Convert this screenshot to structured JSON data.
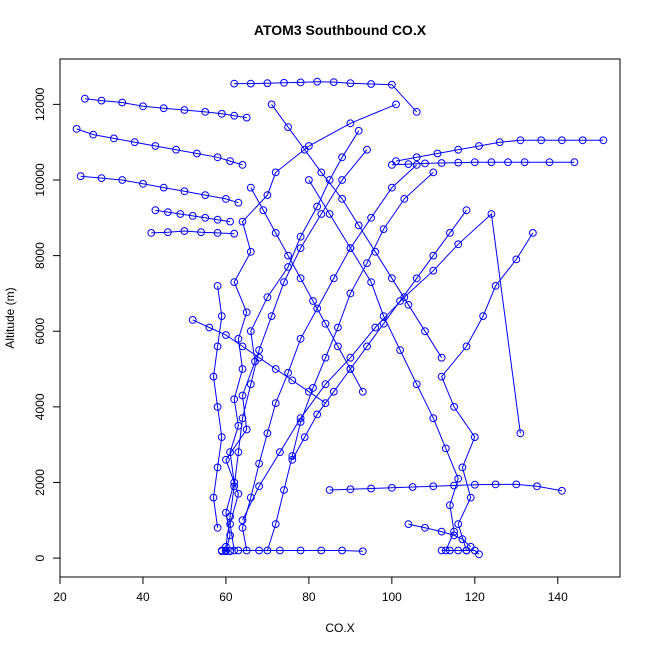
{
  "chart_data": {
    "type": "line",
    "title": "ATOM3 Southbound CO.X",
    "xlabel": "CO.X",
    "ylabel": "Altitude (m)",
    "xlim": [
      20,
      155
    ],
    "ylim": [
      -500,
      13200
    ],
    "xticks": [
      20,
      40,
      60,
      80,
      100,
      120,
      140
    ],
    "yticks": [
      0,
      2000,
      4000,
      6000,
      8000,
      10000,
      12000
    ],
    "xtick_labels": [
      "20",
      "40",
      "60",
      "80",
      "100",
      "120",
      "140"
    ],
    "ytick_labels": [
      "0",
      "2000",
      "4000",
      "6000",
      "8000",
      "10000",
      "12000"
    ],
    "grid": false,
    "legend": "none",
    "marker": "open-circle",
    "line_color": "#0000ff",
    "point_color": "#0000ff",
    "series": [
      {
        "values_note_xy": "approximate profiles",
        "x": [
          60,
          61,
          60,
          62,
          61,
          63,
          62,
          64,
          63,
          65,
          62,
          66,
          64,
          70,
          72,
          80,
          90,
          101
        ],
        "y": [
          200,
          600,
          1200,
          2000,
          2800,
          3500,
          4200,
          5000,
          5800,
          6500,
          7300,
          8100,
          8900,
          9600,
          10200,
          10900,
          11500,
          12000
        ]
      },
      {
        "x": [
          62,
          61,
          63,
          60,
          65,
          64,
          67,
          66,
          70,
          75,
          78,
          82,
          85,
          88,
          92
        ],
        "y": [
          200,
          900,
          1700,
          2600,
          3400,
          4300,
          5200,
          6000,
          6900,
          7700,
          8500,
          9300,
          10000,
          10600,
          11300
        ]
      },
      {
        "x": [
          65,
          64,
          66,
          68,
          70,
          72,
          75,
          78,
          82,
          86,
          90,
          95,
          100,
          106
        ],
        "y": [
          200,
          800,
          1600,
          2500,
          3300,
          4100,
          4900,
          5800,
          6600,
          7400,
          8200,
          9000,
          9800,
          10400
        ]
      },
      {
        "x": [
          70,
          72,
          74,
          76,
          78,
          81,
          84,
          87,
          90,
          94,
          98,
          103,
          110
        ],
        "y": [
          200,
          900,
          1800,
          2700,
          3600,
          4500,
          5300,
          6100,
          7000,
          7800,
          8700,
          9500,
          10200
        ]
      },
      {
        "x": [
          113,
          115,
          114,
          116,
          113,
          110,
          106,
          102,
          98,
          95,
          90,
          85,
          80
        ],
        "y": [
          200,
          700,
          1400,
          2100,
          2900,
          3700,
          4600,
          5500,
          6400,
          7300,
          8200,
          9100,
          10000
        ]
      },
      {
        "x": [
          118,
          116,
          119,
          117,
          120,
          115,
          112,
          118,
          122,
          125,
          130,
          134
        ],
        "y": [
          200,
          900,
          1600,
          2400,
          3200,
          4000,
          4800,
          5600,
          6400,
          7200,
          7900,
          8600
        ]
      },
      {
        "x": [
          60,
          61,
          62,
          63,
          64,
          66,
          68,
          71,
          74,
          78,
          83,
          88,
          94
        ],
        "y": [
          300,
          1100,
          1900,
          2800,
          3700,
          4600,
          5500,
          6400,
          7300,
          8200,
          9100,
          10000,
          10800
        ]
      },
      {
        "x": [
          26,
          30,
          35,
          40,
          45,
          50,
          55,
          59,
          62,
          65
        ],
        "y": [
          12150,
          12100,
          12050,
          11950,
          11900,
          11850,
          11800,
          11750,
          11700,
          11650
        ]
      },
      {
        "x": [
          24,
          28,
          33,
          38,
          43,
          48,
          53,
          58,
          61,
          64
        ],
        "y": [
          11350,
          11200,
          11100,
          11000,
          10900,
          10800,
          10700,
          10600,
          10500,
          10400
        ]
      },
      {
        "x": [
          25,
          30,
          35,
          40,
          45,
          50,
          55,
          60,
          63
        ],
        "y": [
          10100,
          10050,
          10000,
          9900,
          9800,
          9700,
          9600,
          9500,
          9400
        ]
      },
      {
        "x": [
          43,
          46,
          49,
          52,
          55,
          58,
          61
        ],
        "y": [
          9200,
          9150,
          9100,
          9050,
          9000,
          8950,
          8900
        ]
      },
      {
        "x": [
          42,
          46,
          50,
          54,
          58,
          62
        ],
        "y": [
          8600,
          8620,
          8650,
          8620,
          8600,
          8580
        ]
      },
      {
        "x": [
          62,
          66,
          70,
          74,
          78,
          82,
          86,
          90,
          95,
          100,
          106
        ],
        "y": [
          12550,
          12550,
          12560,
          12570,
          12580,
          12600,
          12590,
          12560,
          12540,
          12520,
          11800
        ]
      },
      {
        "x": [
          101,
          106,
          111,
          116,
          121,
          126,
          131,
          136,
          141,
          146,
          151
        ],
        "y": [
          10500,
          10600,
          10700,
          10800,
          10900,
          11000,
          11050,
          11050,
          11050,
          11050,
          11050
        ]
      },
      {
        "x": [
          100,
          104,
          108,
          112,
          116,
          120,
          124,
          128,
          132,
          138,
          144
        ],
        "y": [
          10400,
          10420,
          10440,
          10450,
          10460,
          10470,
          10470,
          10470,
          10470,
          10470,
          10470
        ]
      },
      {
        "x": [
          85,
          90,
          95,
          100,
          105,
          110,
          115,
          120,
          125,
          130,
          135,
          141
        ],
        "y": [
          1800,
          1820,
          1840,
          1860,
          1880,
          1900,
          1920,
          1940,
          1950,
          1950,
          1900,
          1780
        ]
      },
      {
        "x": [
          59,
          60,
          61,
          60,
          61,
          60,
          59
        ],
        "y": [
          180,
          180,
          190,
          200,
          180,
          190,
          200
        ]
      },
      {
        "x": [
          63,
          68,
          73,
          78,
          83,
          88,
          93
        ],
        "y": [
          200,
          200,
          200,
          200,
          200,
          200,
          180
        ]
      },
      {
        "x": [
          112,
          114,
          116,
          118,
          120,
          121
        ],
        "y": [
          200,
          200,
          200,
          200,
          200,
          100
        ]
      },
      {
        "x": [
          58,
          57,
          58,
          59,
          58,
          57,
          58,
          59,
          58
        ],
        "y": [
          800,
          1600,
          2400,
          3200,
          4000,
          4800,
          5600,
          6400,
          7200
        ]
      },
      {
        "x": [
          104,
          108,
          112,
          115,
          117,
          119
        ],
        "y": [
          900,
          800,
          700,
          600,
          500,
          300
        ]
      },
      {
        "x": [
          64,
          68,
          73,
          78,
          84,
          90,
          96,
          103,
          110,
          116,
          124,
          131
        ],
        "y": [
          1000,
          1900,
          2800,
          3700,
          4600,
          5300,
          6100,
          6900,
          7600,
          8300,
          9100,
          3300
        ]
      },
      {
        "x": [
          71,
          75,
          79,
          83,
          88,
          92,
          96,
          100,
          104,
          108,
          112
        ],
        "y": [
          12000,
          11400,
          10800,
          10200,
          9500,
          8800,
          8100,
          7400,
          6700,
          6000,
          5300
        ]
      },
      {
        "x": [
          52,
          56,
          60,
          64,
          68,
          72,
          76,
          80,
          84
        ],
        "y": [
          6300,
          6100,
          5900,
          5600,
          5300,
          5000,
          4700,
          4400,
          4100
        ]
      },
      {
        "x": [
          76,
          79,
          82,
          86,
          90,
          94,
          98,
          102,
          106,
          110,
          114,
          118
        ],
        "y": [
          2600,
          3200,
          3800,
          4400,
          5000,
          5600,
          6200,
          6800,
          7400,
          8000,
          8600,
          9200
        ]
      },
      {
        "x": [
          66,
          69,
          72,
          75,
          78,
          81,
          84,
          87,
          90,
          93
        ],
        "y": [
          9800,
          9200,
          8600,
          8000,
          7400,
          6800,
          6200,
          5600,
          5000,
          4400
        ]
      }
    ]
  }
}
